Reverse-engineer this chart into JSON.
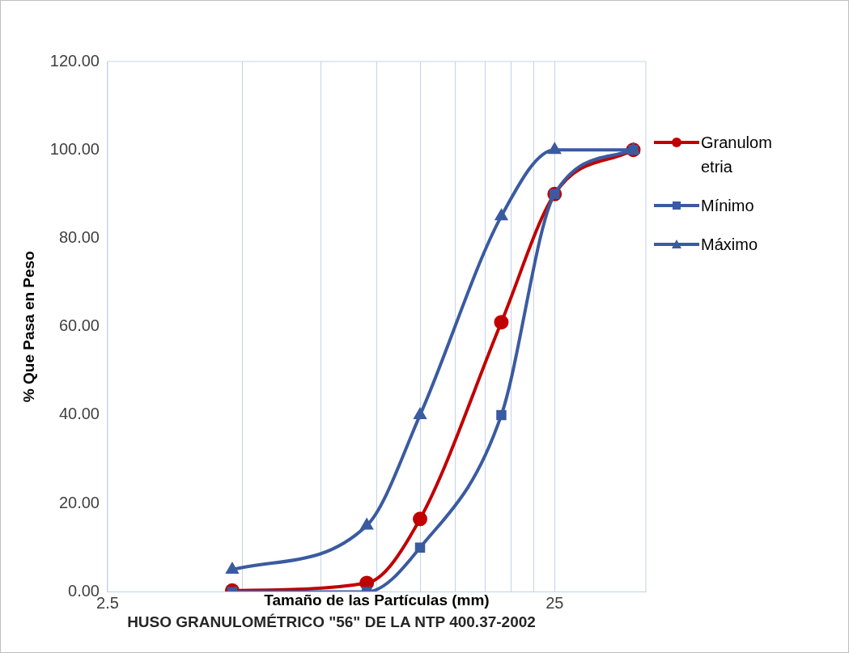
{
  "chart_data": {
    "type": "line",
    "title": "HUSO GRANULOMÉTRICO \"56\" DE LA NTP 400.37-2002",
    "xlabel": "Tamaño de las Partículas (mm)",
    "ylabel": "% Que Pasa en Peso",
    "x": [
      4.75,
      9.5,
      12.5,
      19,
      25,
      37.5
    ],
    "series": [
      {
        "name": "Granulometria",
        "color": "#c00000",
        "marker": "circle",
        "values": [
          0.3,
          2,
          16.5,
          61,
          90,
          100
        ]
      },
      {
        "name": "Mínimo",
        "color": "#3a5ba0",
        "marker": "square",
        "values": [
          0,
          0,
          10,
          40,
          90,
          100
        ]
      },
      {
        "name": "Máximo",
        "color": "#3a5ba0",
        "marker": "triangle",
        "values": [
          5,
          15,
          40,
          85,
          100,
          100
        ]
      }
    ],
    "log": "x",
    "xlim": [
      2.5,
      40
    ],
    "xticks": [
      2.5,
      {
        "value": 5,
        "label": null
      },
      {
        "value": 7.5,
        "label": null
      },
      {
        "value": 10,
        "label": null
      },
      {
        "value": 12.5,
        "label": null
      },
      {
        "value": 15,
        "label": null
      },
      {
        "value": 17.5,
        "label": null
      },
      {
        "value": 20,
        "label": null
      },
      {
        "value": 22.5,
        "label": null
      },
      25
    ],
    "ylim": [
      0,
      120
    ],
    "yticks": [
      {
        "value": 0,
        "label": "0.00"
      },
      {
        "value": 20,
        "label": "20.00"
      },
      {
        "value": 40,
        "label": "40.00"
      },
      {
        "value": 60,
        "label": "60.00"
      },
      {
        "value": 80,
        "label": "80.00"
      },
      {
        "value": 100,
        "label": "100.00"
      },
      {
        "value": 120,
        "label": "120.00"
      }
    ],
    "grid": "x",
    "legend": "right",
    "line_style": "solid"
  }
}
